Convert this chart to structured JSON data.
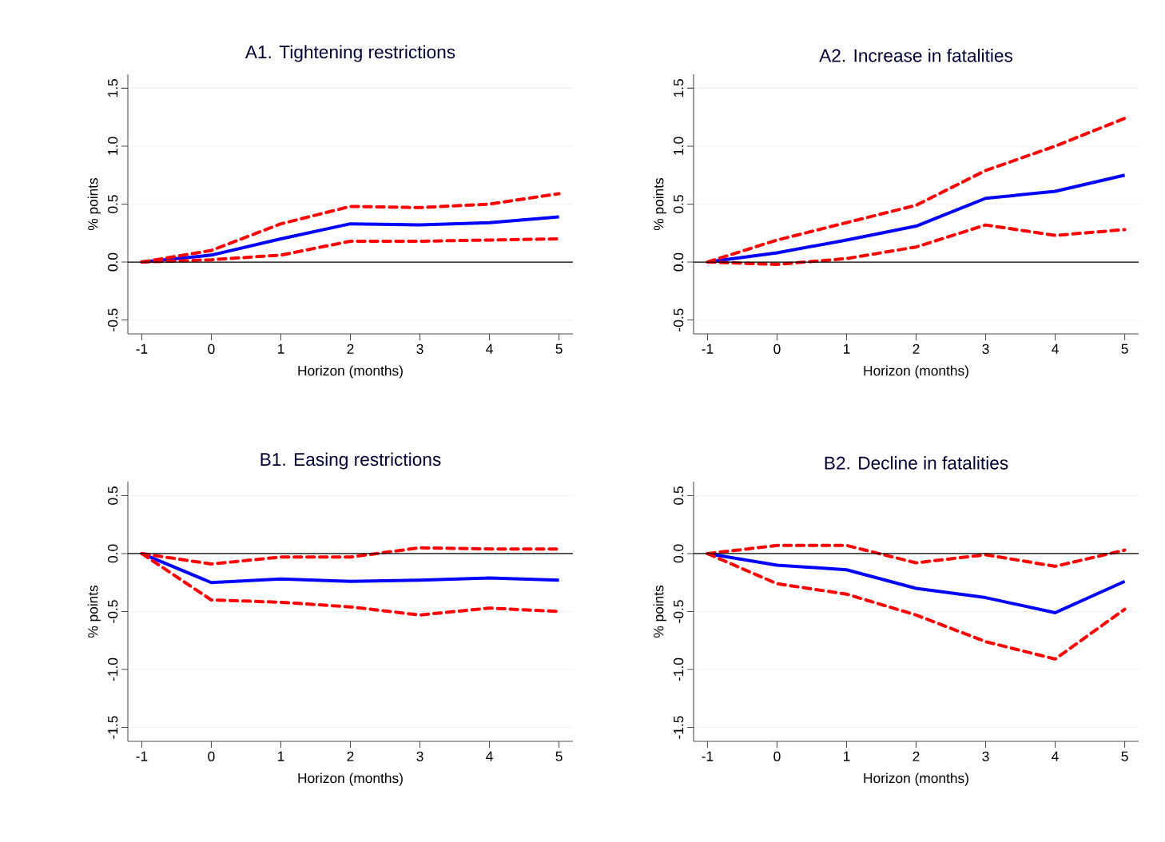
{
  "chart_data": [
    {
      "type": "line",
      "title": "A1. Tightening restrictions",
      "xlabel": "Horizon (months)",
      "ylabel": "% points",
      "x": [
        -1,
        0,
        1,
        2,
        3,
        4,
        5
      ],
      "series": [
        {
          "color": "#0000ff",
          "line_style": "solid",
          "values": [
            0,
            0.06,
            0.2,
            0.33,
            0.32,
            0.34,
            0.39
          ]
        },
        {
          "color": "#ff0000",
          "line_style": "dashed",
          "values": [
            0,
            0.1,
            0.33,
            0.48,
            0.47,
            0.5,
            0.59
          ]
        },
        {
          "color": "#ff0000",
          "line_style": "dashed",
          "values": [
            0,
            0.02,
            0.06,
            0.18,
            0.18,
            0.19,
            0.2
          ]
        }
      ],
      "xlim": [
        -1.2,
        5.2
      ],
      "ylim": [
        -0.62,
        1.62
      ],
      "xticks": [
        -1,
        0,
        1,
        2,
        3,
        4,
        5
      ],
      "yticks": [
        {
          "value": -0.5,
          "label": "-0.5"
        },
        {
          "value": 0,
          "label": "0.0"
        },
        {
          "value": 0.5,
          "label": "0.5"
        },
        {
          "value": 1,
          "label": "1.0"
        },
        {
          "value": 1.5,
          "label": "1.5"
        }
      ],
      "grid": "y",
      "ref_lines": [
        {
          "axis": "y",
          "value": 0
        }
      ]
    },
    {
      "type": "line",
      "title": "A2. Increase in fatalities",
      "xlabel": "Horizon (months)",
      "ylabel": "% points",
      "x": [
        -1,
        0,
        1,
        2,
        3,
        4,
        5
      ],
      "series": [
        {
          "color": "#0000ff",
          "line_style": "solid",
          "values": [
            0,
            0.08,
            0.19,
            0.31,
            0.55,
            0.61,
            0.75
          ]
        },
        {
          "color": "#ff0000",
          "line_style": "dashed",
          "values": [
            0,
            0.19,
            0.34,
            0.49,
            0.79,
            1.0,
            1.24
          ]
        },
        {
          "color": "#ff0000",
          "line_style": "dashed",
          "values": [
            0,
            -0.02,
            0.03,
            0.13,
            0.32,
            0.23,
            0.28
          ]
        }
      ],
      "xlim": [
        -1.2,
        5.2
      ],
      "ylim": [
        -0.62,
        1.62
      ],
      "xticks": [
        -1,
        0,
        1,
        2,
        3,
        4,
        5
      ],
      "yticks": [
        {
          "value": -0.5,
          "label": "-0.5"
        },
        {
          "value": 0,
          "label": "0.0"
        },
        {
          "value": 0.5,
          "label": "0.5"
        },
        {
          "value": 1,
          "label": "1.0"
        },
        {
          "value": 1.5,
          "label": "1.5"
        }
      ],
      "grid": "y",
      "ref_lines": [
        {
          "axis": "y",
          "value": 0
        }
      ]
    },
    {
      "type": "line",
      "title": "B1. Easing restrictions",
      "xlabel": "Horizon (months)",
      "ylabel": "% points",
      "x": [
        -1,
        0,
        1,
        2,
        3,
        4,
        5
      ],
      "series": [
        {
          "color": "#0000ff",
          "line_style": "solid",
          "values": [
            0,
            -0.25,
            -0.22,
            -0.24,
            -0.23,
            -0.21,
            -0.23
          ]
        },
        {
          "color": "#ff0000",
          "line_style": "dashed",
          "values": [
            0,
            -0.09,
            -0.03,
            -0.03,
            0.05,
            0.04,
            0.04
          ]
        },
        {
          "color": "#ff0000",
          "line_style": "dashed",
          "values": [
            0,
            -0.4,
            -0.42,
            -0.46,
            -0.53,
            -0.47,
            -0.5
          ]
        }
      ],
      "xlim": [
        -1.2,
        5.2
      ],
      "ylim": [
        -1.62,
        0.62
      ],
      "xticks": [
        -1,
        0,
        1,
        2,
        3,
        4,
        5
      ],
      "yticks": [
        {
          "value": -1.5,
          "label": "-1.5"
        },
        {
          "value": -1,
          "label": "-1.0"
        },
        {
          "value": -0.5,
          "label": "-0.5"
        },
        {
          "value": 0,
          "label": "0.0"
        },
        {
          "value": 0.5,
          "label": "0.5"
        }
      ],
      "grid": "y",
      "ref_lines": [
        {
          "axis": "y",
          "value": 0
        }
      ]
    },
    {
      "type": "line",
      "title": "B2. Decline in fatalities",
      "xlabel": "Horizon (months)",
      "ylabel": "% points",
      "x": [
        -1,
        0,
        1,
        2,
        3,
        4,
        5
      ],
      "series": [
        {
          "color": "#0000ff",
          "line_style": "solid",
          "values": [
            0,
            -0.1,
            -0.14,
            -0.3,
            -0.38,
            -0.51,
            -0.24
          ]
        },
        {
          "color": "#ff0000",
          "line_style": "dashed",
          "values": [
            0,
            0.07,
            0.07,
            -0.08,
            -0.01,
            -0.11,
            0.03
          ]
        },
        {
          "color": "#ff0000",
          "line_style": "dashed",
          "values": [
            0,
            -0.26,
            -0.35,
            -0.53,
            -0.76,
            -0.91,
            -0.48
          ]
        }
      ],
      "xlim": [
        -1.2,
        5.2
      ],
      "ylim": [
        -1.62,
        0.62
      ],
      "xticks": [
        -1,
        0,
        1,
        2,
        3,
        4,
        5
      ],
      "yticks": [
        {
          "value": -1.5,
          "label": "-1.5"
        },
        {
          "value": -1,
          "label": "-1.0"
        },
        {
          "value": -0.5,
          "label": "-0.5"
        },
        {
          "value": 0,
          "label": "0.0"
        },
        {
          "value": 0.5,
          "label": "0.5"
        }
      ],
      "grid": "y",
      "ref_lines": [
        {
          "axis": "y",
          "value": 0
        }
      ]
    }
  ]
}
